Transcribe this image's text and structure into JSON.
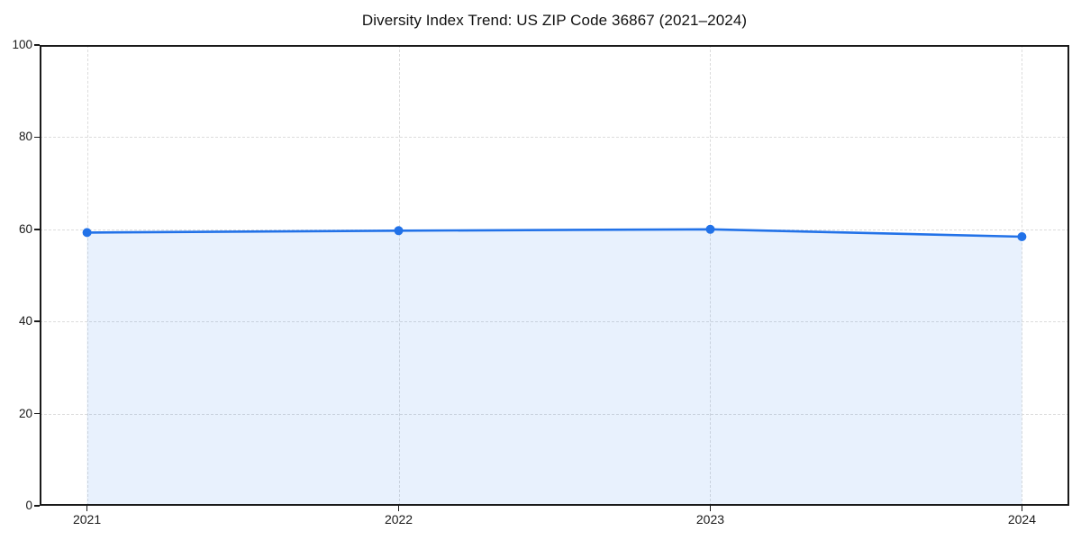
{
  "page": {
    "background_color": "#ffffff"
  },
  "chart_data": {
    "type": "area",
    "title": "Diversity Index Trend: US ZIP Code 36867 (2021–2024)",
    "categories": [
      "2021",
      "2022",
      "2023",
      "2024"
    ],
    "values": [
      59.3,
      59.7,
      60.0,
      58.4
    ],
    "xlabel": "",
    "ylabel": "",
    "ylim": [
      0,
      100
    ],
    "yticks": [
      0,
      20,
      40,
      60,
      80,
      100
    ],
    "grid": true,
    "grid_style": "dashed",
    "legend": false,
    "line_color": "#2272e8",
    "marker_color": "#2272e8",
    "fill_color": "rgba(34, 114, 232, 0.10)",
    "axis_color": "#1a1a1a",
    "grid_color": "#dcdcdc",
    "marker": "circle"
  }
}
